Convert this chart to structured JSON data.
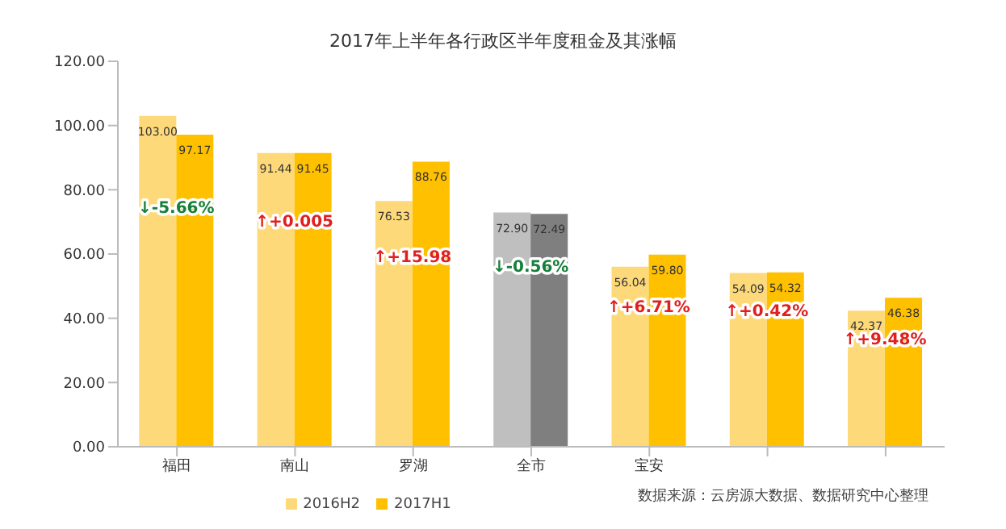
{
  "chart_data": {
    "type": "bar",
    "title": "2017年上半年各行政区半年度租金及其涨幅",
    "categories": [
      "福田",
      "南山",
      "罗湖",
      "全市",
      "宝安",
      null,
      null
    ],
    "series": [
      {
        "name": "2016H2",
        "color": "#fdd97a",
        "colors": [
          "#fdd97a",
          "#fdd97a",
          "#fdd97a",
          "#bfbfbf",
          "#fdd97a",
          "#fdd97a",
          "#fdd97a"
        ],
        "values": [
          103.0,
          91.44,
          76.53,
          72.9,
          56.04,
          54.09,
          42.37
        ],
        "value_labels": [
          "103.00",
          "91.44",
          "76.53",
          "72.90",
          "56.04",
          "54.09",
          "42.37"
        ]
      },
      {
        "name": "2017H1",
        "color": "#ffc000",
        "colors": [
          "#ffc000",
          "#ffc000",
          "#ffc000",
          "#7f7f7f",
          "#ffc000",
          "#ffc000",
          "#ffc000"
        ],
        "values": [
          97.17,
          91.45,
          88.76,
          72.49,
          59.8,
          54.32,
          46.38
        ],
        "value_labels": [
          "97.17",
          "91.45",
          "88.76",
          "72.49",
          "59.80",
          "54.32",
          "46.38"
        ]
      }
    ],
    "annotations": [
      "↓-5.66%",
      "↑+0.005",
      "↑+15.98",
      "↓-0.56%",
      "↑+6.71%",
      "↑+0.42%",
      "↑+9.48%",
      "数据来源：云房源大数据、数据研究中心整理"
    ],
    "ylim": [
      0,
      120
    ],
    "yticks": [
      {
        "value": 0,
        "label": "0.00"
      },
      {
        "value": 20,
        "label": "20.00"
      },
      {
        "value": 40,
        "label": "40.00"
      },
      {
        "value": 60,
        "label": "60.00"
      },
      {
        "value": 80,
        "label": "80.00"
      },
      {
        "value": 100,
        "label": "100.00"
      },
      {
        "value": 120,
        "label": "120.00"
      }
    ],
    "grid": false,
    "legend": "bottom"
  }
}
